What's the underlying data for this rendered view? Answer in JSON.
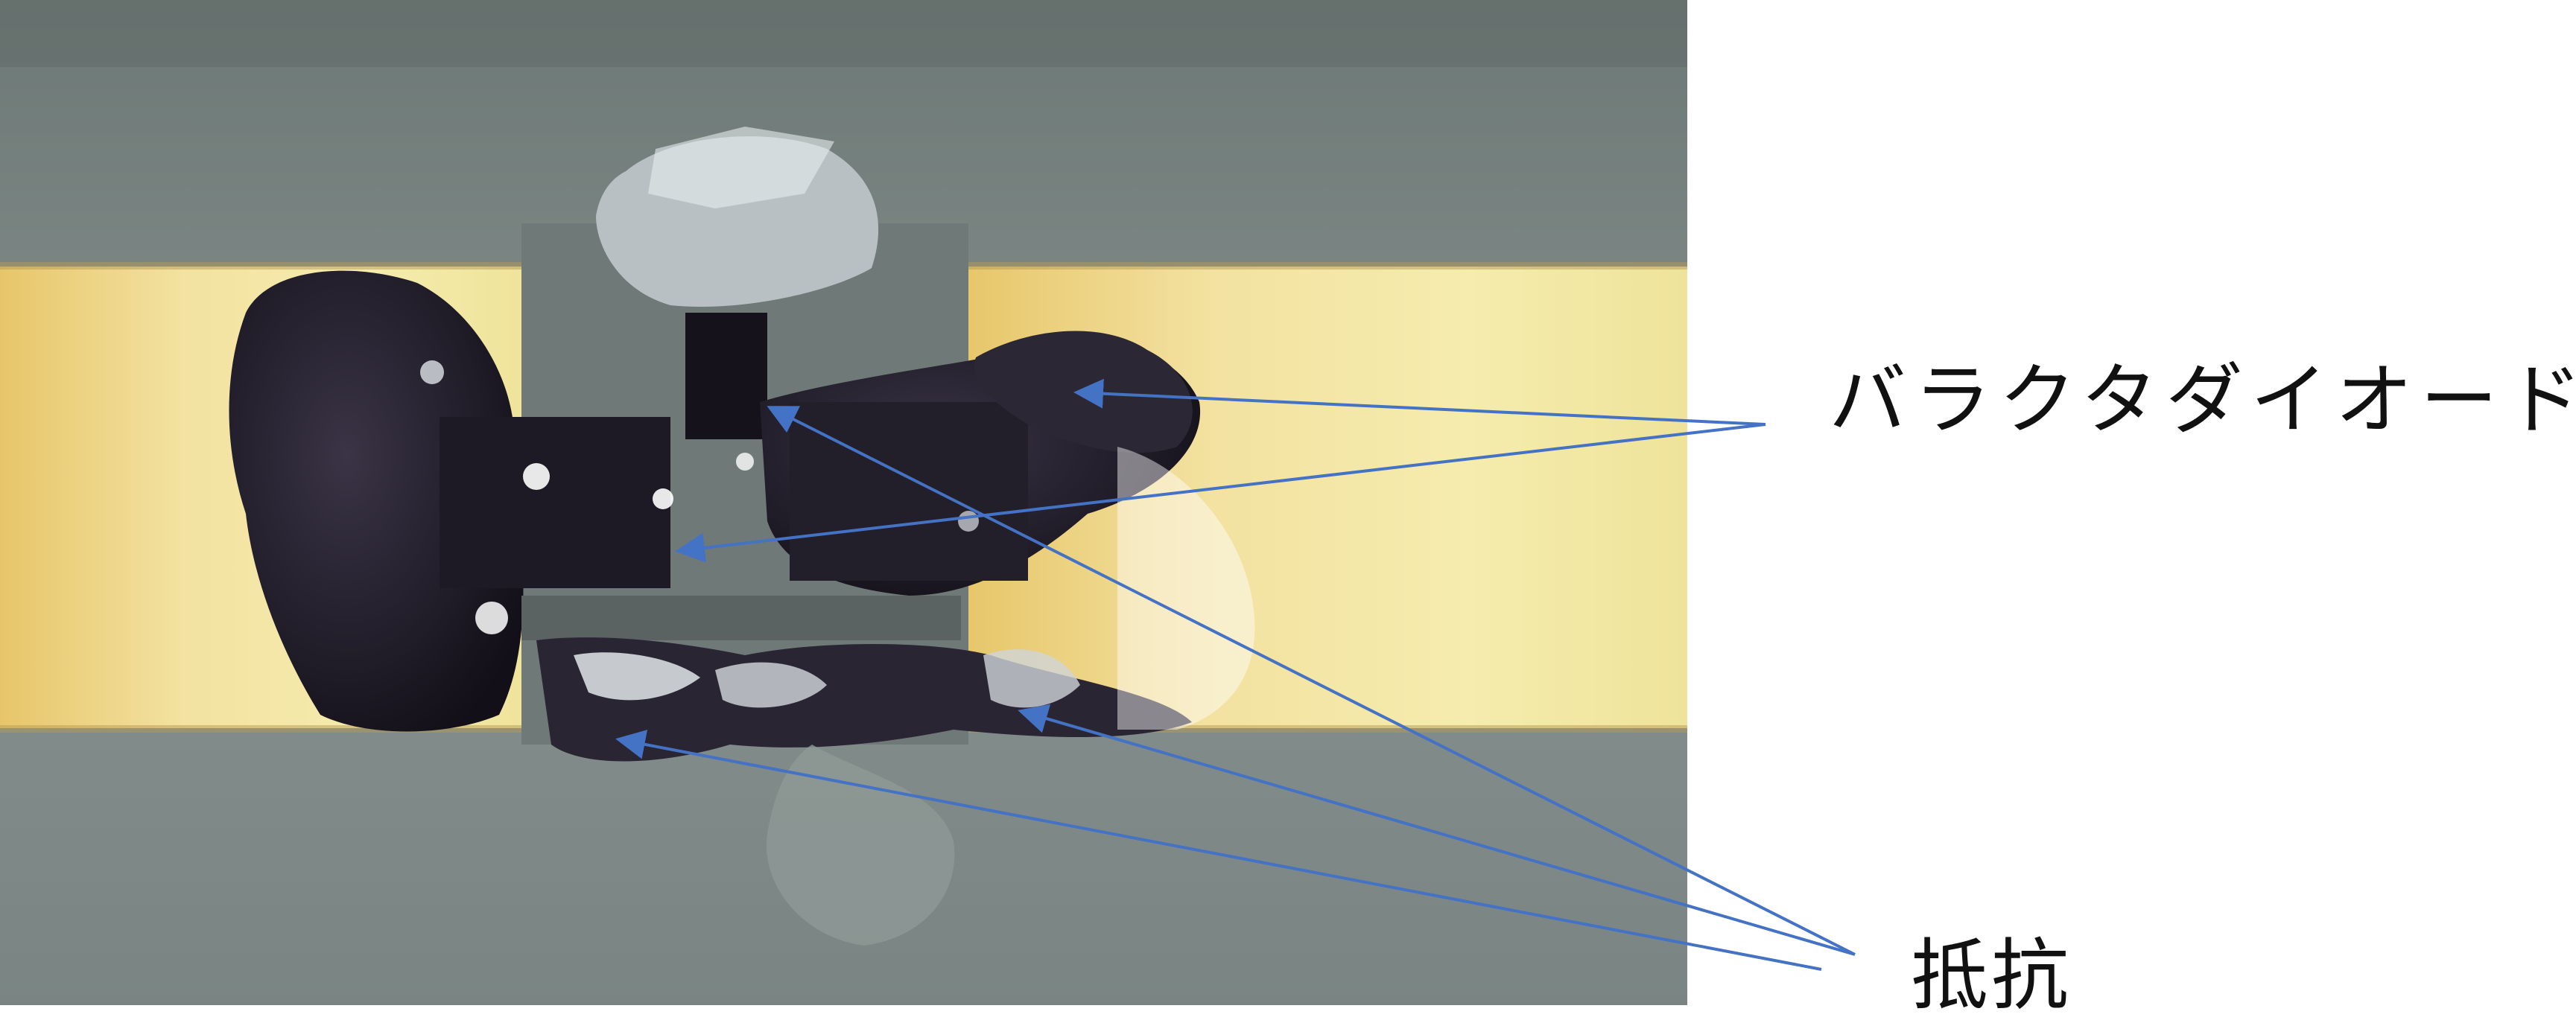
{
  "figure": {
    "labels": {
      "varactor_diode": "バラクタダイオード",
      "resistor": "抵抗"
    },
    "colors": {
      "board_gray": "#7f8a88",
      "gold_trace": "#f0e0a0",
      "solder_dark": "#1b1625",
      "arrow_blue": "#4472c4",
      "label_text": "#111111"
    }
  }
}
